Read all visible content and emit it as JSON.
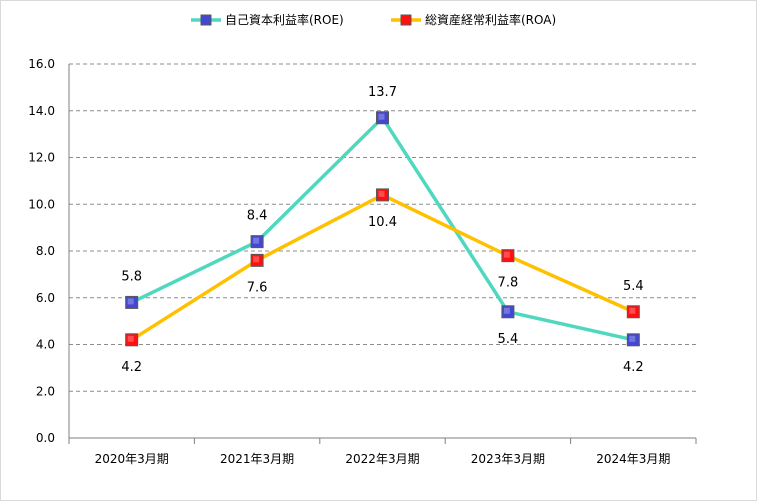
{
  "chart_data": {
    "type": "line",
    "categories": [
      "2020年3月期",
      "2021年3月期",
      "2022年3月期",
      "2023年3月期",
      "2024年3月期"
    ],
    "series": [
      {
        "name": "自己資本利益率(ROE)",
        "values": [
          5.8,
          8.4,
          13.7,
          5.4,
          4.2
        ],
        "line_color": "#4fd8bf",
        "marker_color": "#4448d0",
        "label_position": [
          "above",
          "above",
          "above",
          "below",
          "below"
        ]
      },
      {
        "name": "総資産経常利益率(ROA)",
        "values": [
          4.2,
          7.6,
          10.4,
          7.8,
          5.4
        ],
        "line_color": "#ffc000",
        "marker_color": "#ff1010",
        "label_position": [
          "below",
          "below",
          "below",
          "below",
          "above"
        ]
      }
    ],
    "y_ticks": [
      "0.0",
      "2.0",
      "4.0",
      "6.0",
      "8.0",
      "10.0",
      "12.0",
      "14.0",
      "16.0"
    ],
    "ylim": [
      0,
      16
    ],
    "y_step": 2,
    "grid": "horizontal-dashed",
    "legend": "top-center"
  }
}
